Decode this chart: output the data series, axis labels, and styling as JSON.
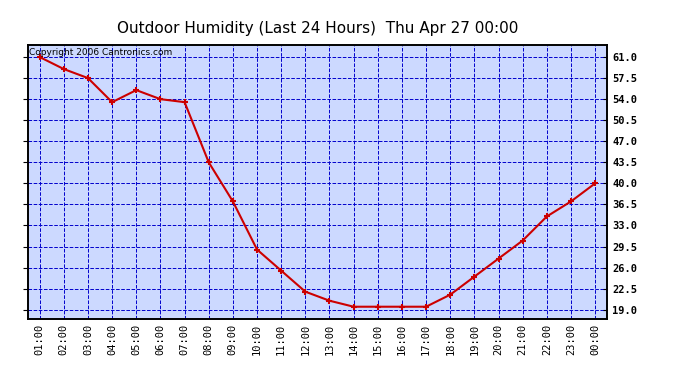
{
  "title": "Outdoor Humidity (Last 24 Hours)  Thu Apr 27 00:00",
  "copyright_text": "Copyright 2006 Cantronics.com",
  "x_labels": [
    "01:00",
    "02:00",
    "03:00",
    "04:00",
    "05:00",
    "06:00",
    "07:00",
    "08:00",
    "09:00",
    "10:00",
    "11:00",
    "12:00",
    "13:00",
    "14:00",
    "15:00",
    "16:00",
    "17:00",
    "18:00",
    "19:00",
    "20:00",
    "21:00",
    "22:00",
    "23:00",
    "00:00"
  ],
  "y_values": [
    61.0,
    59.0,
    57.5,
    53.5,
    55.5,
    54.0,
    53.5,
    43.5,
    37.0,
    29.0,
    25.5,
    22.0,
    20.5,
    19.5,
    19.5,
    19.5,
    19.5,
    21.5,
    24.5,
    27.5,
    30.5,
    34.5,
    37.0,
    40.0
  ],
  "ylim": [
    17.5,
    63.0
  ],
  "yticks": [
    19.0,
    22.5,
    26.0,
    29.5,
    33.0,
    36.5,
    40.0,
    43.5,
    47.0,
    50.5,
    54.0,
    57.5,
    61.0
  ],
  "line_color": "#cc0000",
  "marker_color": "#cc0000",
  "bg_color": "#ccd9ff",
  "grid_color": "#0000cc",
  "border_color": "#000000",
  "title_fontsize": 11,
  "axis_label_fontsize": 7.5,
  "copyright_fontsize": 6.5,
  "title_color": "#000000",
  "tick_label_color": "#0000cc"
}
